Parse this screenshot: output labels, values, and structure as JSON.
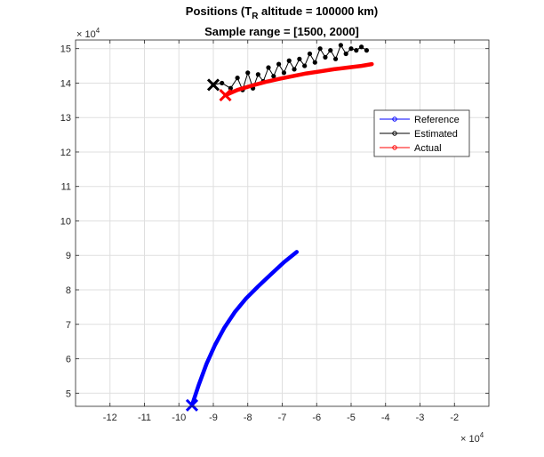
{
  "chart_data": {
    "type": "line",
    "title_main": "Positions (T",
    "title_sub": "R",
    "title_rest": " altitude = 100000 km)",
    "subtitle": "Sample range = [1500, 2000]",
    "xlabel": "",
    "ylabel": "",
    "x_multiplier": "× 10",
    "y_multiplier": "× 10",
    "multiplier_exponent": "4",
    "xlim": [
      -13,
      -1
    ],
    "ylim": [
      4.62,
      15.25
    ],
    "xticks": [
      -12,
      -11,
      -10,
      -9,
      -8,
      -7,
      -6,
      -5,
      -4,
      -3,
      -2
    ],
    "xtick_labels": [
      "-12",
      "-11",
      "-10",
      "-9",
      "-8",
      "-7",
      "-6",
      "-5",
      "-4",
      "-3",
      "-2"
    ],
    "yticks": [
      5,
      6,
      7,
      8,
      9,
      10,
      11,
      12,
      13,
      14,
      15
    ],
    "ytick_labels": [
      "5",
      "6",
      "7",
      "8",
      "9",
      "10",
      "11",
      "12",
      "13",
      "14",
      "15"
    ],
    "grid": true,
    "legend_position": "right",
    "series": [
      {
        "name": "Reference",
        "color": "#0000ff",
        "x": [
          -9.62,
          -9.42,
          -9.2,
          -8.95,
          -8.68,
          -8.38,
          -8.05,
          -7.7,
          -7.33,
          -6.95,
          -6.58
        ],
        "y": [
          4.65,
          5.25,
          5.85,
          6.4,
          6.9,
          7.35,
          7.75,
          8.1,
          8.45,
          8.8,
          9.1
        ],
        "end_marker_x": -9.62,
        "end_marker_y": 4.65
      },
      {
        "name": "Estimated",
        "color": "#000000",
        "x": [
          -9.0,
          -8.75,
          -8.5,
          -8.3,
          -8.15,
          -8.0,
          -7.85,
          -7.7,
          -7.55,
          -7.4,
          -7.25,
          -7.1,
          -6.95,
          -6.8,
          -6.65,
          -6.5,
          -6.35,
          -6.2,
          -6.05,
          -5.9,
          -5.75,
          -5.6,
          -5.45,
          -5.3,
          -5.15,
          -5.0,
          -4.85,
          -4.7,
          -4.55
        ],
        "y": [
          13.95,
          14.0,
          13.85,
          14.15,
          13.8,
          14.3,
          13.85,
          14.25,
          14.05,
          14.45,
          14.2,
          14.55,
          14.3,
          14.65,
          14.4,
          14.7,
          14.5,
          14.85,
          14.6,
          15.0,
          14.75,
          14.95,
          14.7,
          15.1,
          14.85,
          15.0,
          14.95,
          15.05,
          14.95
        ],
        "end_marker_x": -9.0,
        "end_marker_y": 13.95
      },
      {
        "name": "Actual",
        "color": "#ff0000",
        "x": [
          -8.65,
          -8.3,
          -7.9,
          -7.5,
          -7.1,
          -6.7,
          -6.3,
          -5.9,
          -5.5,
          -5.1,
          -4.7,
          -4.4
        ],
        "y": [
          13.65,
          13.8,
          13.92,
          14.03,
          14.12,
          14.2,
          14.28,
          14.34,
          14.4,
          14.45,
          14.5,
          14.55
        ],
        "end_marker_x": -8.65,
        "end_marker_y": 13.65
      }
    ]
  }
}
